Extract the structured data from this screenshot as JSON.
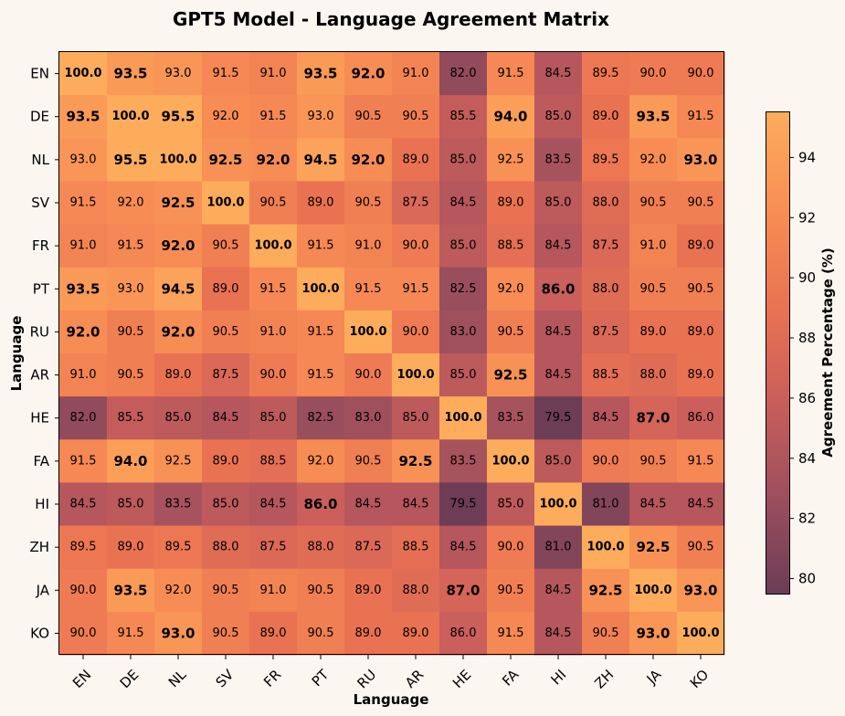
{
  "chart_data": {
    "type": "heatmap",
    "title": "GPT5 Model - Language Agreement Matrix",
    "xlabel": "Language",
    "ylabel": "Language",
    "colorbar_label": "Agreement Percentage (%)",
    "colorbar_ticks": [
      80,
      82,
      84,
      86,
      88,
      90,
      92,
      94
    ],
    "vmin": 79.5,
    "vmax": 95.5,
    "colormap": [
      "#6d3c55",
      "#9c4f5d",
      "#c95e5b",
      "#ea7352",
      "#f88f54",
      "#fdac5c"
    ],
    "labels": [
      "EN",
      "DE",
      "NL",
      "SV",
      "FR",
      "PT",
      "RU",
      "AR",
      "HE",
      "FA",
      "HI",
      "ZH",
      "JA",
      "KO"
    ],
    "values": [
      [
        100.0,
        93.5,
        93.0,
        91.5,
        91.0,
        93.5,
        92.0,
        91.0,
        82.0,
        91.5,
        84.5,
        89.5,
        90.0,
        90.0
      ],
      [
        93.5,
        100.0,
        95.5,
        92.0,
        91.5,
        93.0,
        90.5,
        90.5,
        85.5,
        94.0,
        85.0,
        89.0,
        93.5,
        91.5
      ],
      [
        93.0,
        95.5,
        100.0,
        92.5,
        92.0,
        94.5,
        92.0,
        89.0,
        85.0,
        92.5,
        83.5,
        89.5,
        92.0,
        93.0
      ],
      [
        91.5,
        92.0,
        92.5,
        100.0,
        90.5,
        89.0,
        90.5,
        87.5,
        84.5,
        89.0,
        85.0,
        88.0,
        90.5,
        90.5
      ],
      [
        91.0,
        91.5,
        92.0,
        90.5,
        100.0,
        91.5,
        91.0,
        90.0,
        85.0,
        88.5,
        84.5,
        87.5,
        91.0,
        89.0
      ],
      [
        93.5,
        93.0,
        94.5,
        89.0,
        91.5,
        100.0,
        91.5,
        91.5,
        82.5,
        92.0,
        86.0,
        88.0,
        90.5,
        90.5
      ],
      [
        92.0,
        90.5,
        92.0,
        90.5,
        91.0,
        91.5,
        100.0,
        90.0,
        83.0,
        90.5,
        84.5,
        87.5,
        89.0,
        89.0
      ],
      [
        91.0,
        90.5,
        89.0,
        87.5,
        90.0,
        91.5,
        90.0,
        100.0,
        85.0,
        92.5,
        84.5,
        88.5,
        88.0,
        89.0
      ],
      [
        82.0,
        85.5,
        85.0,
        84.5,
        85.0,
        82.5,
        83.0,
        85.0,
        100.0,
        83.5,
        79.5,
        84.5,
        87.0,
        86.0
      ],
      [
        91.5,
        94.0,
        92.5,
        89.0,
        88.5,
        92.0,
        90.5,
        92.5,
        83.5,
        100.0,
        85.0,
        90.0,
        90.5,
        91.5
      ],
      [
        84.5,
        85.0,
        83.5,
        85.0,
        84.5,
        86.0,
        84.5,
        84.5,
        79.5,
        85.0,
        100.0,
        81.0,
        84.5,
        84.5
      ],
      [
        89.5,
        89.0,
        89.5,
        88.0,
        87.5,
        88.0,
        87.5,
        88.5,
        84.5,
        90.0,
        81.0,
        100.0,
        92.5,
        90.5
      ],
      [
        90.0,
        93.5,
        92.0,
        90.5,
        91.0,
        90.5,
        89.0,
        88.0,
        87.0,
        90.5,
        84.5,
        92.5,
        100.0,
        93.0
      ],
      [
        90.0,
        91.5,
        93.0,
        90.5,
        89.0,
        90.5,
        89.0,
        89.0,
        86.0,
        91.5,
        84.5,
        90.5,
        93.0,
        100.0
      ]
    ],
    "large_bold_labels": [
      [
        0,
        1
      ],
      [
        0,
        5
      ],
      [
        0,
        6
      ],
      [
        1,
        0
      ],
      [
        1,
        2
      ],
      [
        1,
        9
      ],
      [
        1,
        12
      ],
      [
        2,
        1
      ],
      [
        2,
        3
      ],
      [
        2,
        4
      ],
      [
        2,
        5
      ],
      [
        2,
        6
      ],
      [
        2,
        13
      ],
      [
        3,
        2
      ],
      [
        4,
        2
      ],
      [
        5,
        0
      ],
      [
        5,
        2
      ],
      [
        5,
        10
      ],
      [
        6,
        0
      ],
      [
        6,
        2
      ],
      [
        7,
        9
      ],
      [
        8,
        12
      ],
      [
        9,
        1
      ],
      [
        9,
        7
      ],
      [
        10,
        5
      ],
      [
        11,
        12
      ],
      [
        12,
        1
      ],
      [
        12,
        8
      ],
      [
        12,
        11
      ],
      [
        12,
        13
      ],
      [
        13,
        2
      ],
      [
        13,
        12
      ]
    ]
  }
}
